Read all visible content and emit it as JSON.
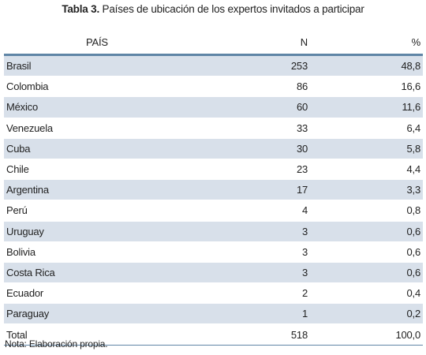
{
  "caption": {
    "label": "Tabla 3.",
    "text": " Países de ubicación de los expertos invitados a participar"
  },
  "table": {
    "headers": {
      "country": "PAÍS",
      "n": "N",
      "pct": "%"
    },
    "rows": [
      {
        "country": "Brasil",
        "n": "253",
        "pct": "48,8"
      },
      {
        "country": "Colombia",
        "n": "86",
        "pct": "16,6"
      },
      {
        "country": "México",
        "n": "60",
        "pct": "11,6"
      },
      {
        "country": "Venezuela",
        "n": "33",
        "pct": "6,4"
      },
      {
        "country": "Cuba",
        "n": "30",
        "pct": "5,8"
      },
      {
        "country": "Chile",
        "n": "23",
        "pct": "4,4"
      },
      {
        "country": "Argentina",
        "n": "17",
        "pct": "3,3"
      },
      {
        "country": "Perú",
        "n": "4",
        "pct": "0,8"
      },
      {
        "country": "Uruguay",
        "n": "3",
        "pct": "0,6"
      },
      {
        "country": "Bolivia",
        "n": "3",
        "pct": "0,6"
      },
      {
        "country": "Costa Rica",
        "n": "3",
        "pct": "0,6"
      },
      {
        "country": "Ecuador",
        "n": "2",
        "pct": "0,4"
      },
      {
        "country": "Paraguay",
        "n": "1",
        "pct": "0,2"
      }
    ],
    "total": {
      "country": "Total",
      "n": "518",
      "pct": "100,0"
    }
  },
  "note": "Nota: Elaboración propia.",
  "colors": {
    "header_rule": "#5f85a6",
    "shaded_row": "#d8e0ea"
  }
}
